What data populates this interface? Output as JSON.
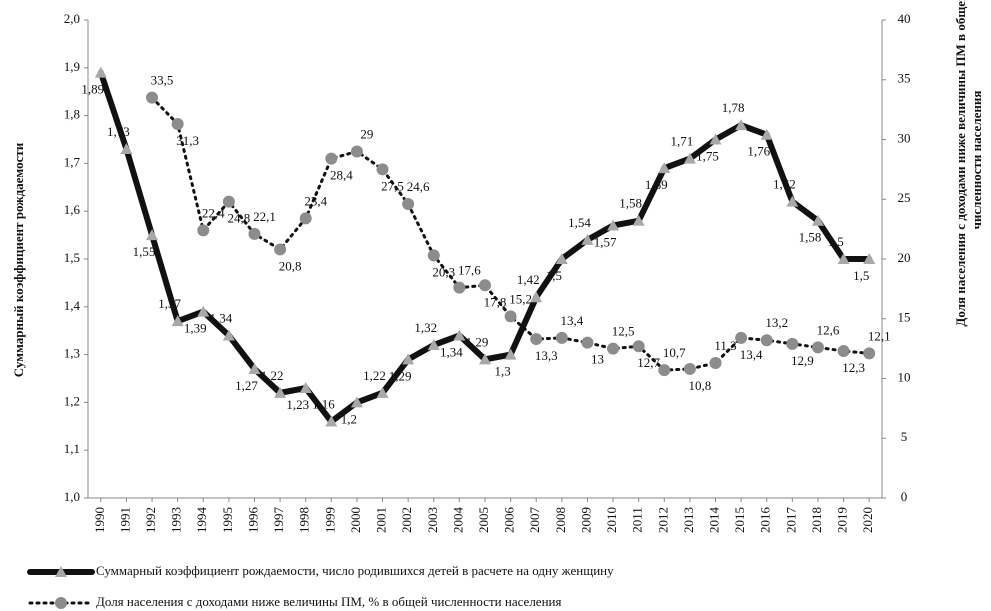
{
  "chart_data": {
    "type": "line",
    "ylabel": "Суммарный коэффициент рождаемости",
    "y2label": [
      "Доля населения с доходами ниже величины ПМ в общей",
      "численности населения"
    ],
    "categories": [
      "1990",
      "1991",
      "1992",
      "1993",
      "1994",
      "1995",
      "1996",
      "1997",
      "1998",
      "1999",
      "2000",
      "2001",
      "2002",
      "2003",
      "2004",
      "2005",
      "2006",
      "2007",
      "2008",
      "2009",
      "2010",
      "2011",
      "2012",
      "2013",
      "2014",
      "2015",
      "2016",
      "2017",
      "2018",
      "2019",
      "2020"
    ],
    "ylim": [
      1.0,
      2.0
    ],
    "yticks": [
      {
        "value": 1.0,
        "label": "1,0"
      },
      {
        "value": 1.1,
        "label": "1,1"
      },
      {
        "value": 1.2,
        "label": "1,2"
      },
      {
        "value": 1.3,
        "label": "1,3"
      },
      {
        "value": 1.4,
        "label": "1,4"
      },
      {
        "value": 1.5,
        "label": "1,5"
      },
      {
        "value": 1.6,
        "label": "1,6"
      },
      {
        "value": 1.7,
        "label": "1,7"
      },
      {
        "value": 1.8,
        "label": "1,8"
      },
      {
        "value": 1.9,
        "label": "1,9"
      },
      {
        "value": 2.0,
        "label": "2,0"
      }
    ],
    "y2lim": [
      0,
      40
    ],
    "y2ticks": [
      0,
      5,
      10,
      15,
      20,
      25,
      30,
      35,
      40
    ],
    "series": [
      {
        "name": "Суммарный коэффициент рождаемости, число родившихся детей в расчете на одну женщину",
        "color": "#111111",
        "marker_color": "#a8a8a8",
        "marker": "triangle",
        "dashed": false,
        "values": [
          1.89,
          1.73,
          1.55,
          1.37,
          1.39,
          1.34,
          1.27,
          1.22,
          1.23,
          1.16,
          1.2,
          1.22,
          1.29,
          1.32,
          1.34,
          1.29,
          1.3,
          1.42,
          1.5,
          1.54,
          1.57,
          1.58,
          1.69,
          1.71,
          1.75,
          1.78,
          1.76,
          1.62,
          1.58,
          1.5,
          1.5
        ],
        "value_labels": [
          "1,89",
          "1,73",
          "1,55",
          "1,37",
          "1,39",
          "1,34",
          "1,27",
          "1,22",
          "1,23",
          "1,16",
          "1,2",
          "1,22",
          "1,29",
          "1,32",
          "1,34",
          "1,29",
          "1,3",
          "1,42",
          "1,5",
          "1,54",
          "1,57",
          "1,58",
          "1,69",
          "1,71",
          "1,75",
          "1,78",
          "1,76",
          "1,62",
          "1,58",
          "1,5",
          "1,5"
        ]
      },
      {
        "name": "Доля населения с доходами ниже величины ПМ, % в общей численности населения",
        "color": "#111111",
        "marker_color": "#8c8c8c",
        "marker": "circle",
        "dashed": true,
        "axis": "y2",
        "values": [
          null,
          null,
          33.5,
          31.3,
          22.4,
          24.8,
          22.1,
          20.8,
          23.4,
          28.4,
          29,
          27.5,
          24.6,
          20.3,
          17.6,
          17.8,
          15.2,
          13.3,
          13.4,
          13,
          12.5,
          12.7,
          10.7,
          10.8,
          11.3,
          13.4,
          13.2,
          12.9,
          12.6,
          12.3,
          12.1
        ],
        "value_labels": [
          null,
          null,
          "33,5",
          "31,3",
          "22,4",
          "24,8",
          "22,1",
          "20,8",
          "23,4",
          "28,4",
          "29",
          "27,5",
          "24,6",
          "20,3",
          "17,6",
          "17,8",
          "15,2",
          "13,3",
          "13,4",
          "13",
          "12,5",
          "12,7",
          "10,7",
          "10,8",
          "11,3",
          "13,4",
          "13,2",
          "12,9",
          "12,6",
          "12,3",
          "12,1"
        ]
      }
    ]
  }
}
